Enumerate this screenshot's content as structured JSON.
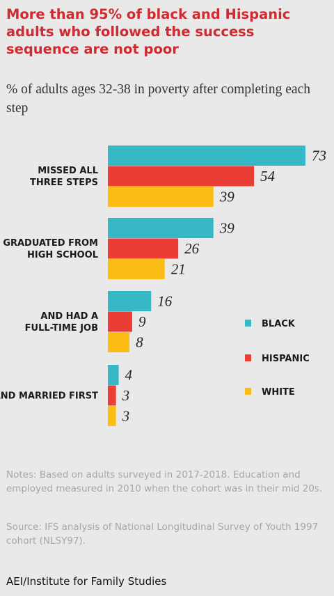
{
  "chart_data": {
    "type": "bar",
    "orientation": "horizontal",
    "title": "More than 95% of black and Hispanic adults who followed the success sequence are not poor",
    "subtitle": "% of adults ages 32-38 in poverty after completing each step",
    "categories": [
      [
        "MISSED ALL",
        "THREE STEPS"
      ],
      [
        "GRADUATED FROM",
        "HIGH SCHOOL"
      ],
      [
        "AND HAD A",
        "FULL-TIME JOB"
      ],
      [
        "AND MARRIED FIRST"
      ]
    ],
    "series": [
      {
        "name": "BLACK",
        "color": "#36b8c6",
        "values": [
          73,
          39,
          16,
          4
        ]
      },
      {
        "name": "HISPANIC",
        "color": "#ea3d36",
        "values": [
          54,
          26,
          9,
          3
        ]
      },
      {
        "name": "WHITE",
        "color": "#fbbd14",
        "values": [
          39,
          21,
          8,
          3
        ]
      }
    ],
    "legend_position": "right",
    "grid": false
  },
  "notes": "Notes: Based on adults surveyed in 2017-2018. Education and employed measured in 2010 when the cohort was in their mid 20s.",
  "source": "Source: IFS analysis of National Longitudinal Survey of Youth 1997 cohort (NLSY97).",
  "footer": "AEI/Institute for Family Studies"
}
